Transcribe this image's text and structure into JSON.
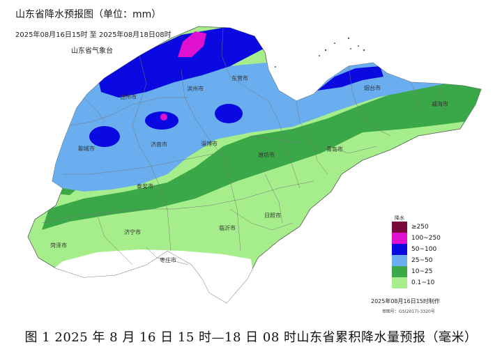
{
  "map": {
    "title": "山东省降水预报图（单位：mm）",
    "time_range": "2025年08月16日15时  至  2025年08月18日08时",
    "agency": "山东省气象台",
    "made_note": "2025年08月16日15时制作",
    "review_no": "审图号：GS(2017)-3320号",
    "caption": "图 1  2025 年 8 月 16 日 15 时—18 日 08 时山东省累积降水量预报（毫米）"
  },
  "legend": {
    "heading": "降水",
    "items": [
      {
        "label": "≥250",
        "color": "#7a0a3c"
      },
      {
        "label": "100~250",
        "color": "#e010d0"
      },
      {
        "label": "50~100",
        "color": "#0a0ae0"
      },
      {
        "label": "25~50",
        "color": "#6aaef0"
      },
      {
        "label": "10~25",
        "color": "#3aa848"
      },
      {
        "label": "0.1~10",
        "color": "#a6ee8c"
      }
    ]
  },
  "cities": [
    {
      "name": "德州市"
    },
    {
      "name": "滨州市"
    },
    {
      "name": "东营市"
    },
    {
      "name": "烟台市"
    },
    {
      "name": "威海市"
    },
    {
      "name": "聊城市"
    },
    {
      "name": "济南市"
    },
    {
      "name": "淄博市"
    },
    {
      "name": "潍坊市"
    },
    {
      "name": "青岛市"
    },
    {
      "name": "泰安市"
    },
    {
      "name": "济宁市"
    },
    {
      "name": "临沂市"
    },
    {
      "name": "日照市"
    },
    {
      "name": "菏泽市"
    },
    {
      "name": "枣庄市"
    }
  ]
}
